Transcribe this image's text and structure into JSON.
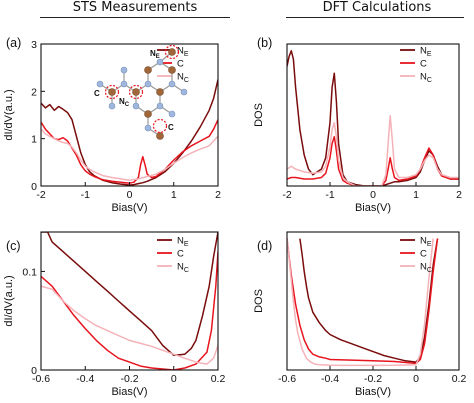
{
  "headers": {
    "left": "STS Measurements",
    "right": "DFT Calculations"
  },
  "colors": {
    "dark": "#7a0c0c",
    "red": "#e8141e",
    "pink": "#f4b3b8",
    "atom_brown": "#a0663a",
    "atom_blue": "#9fb6df",
    "highlight": "#e8141e"
  },
  "inset": {
    "labels": [
      "N",
      "N",
      "C",
      "C"
    ],
    "subscripts": [
      "E",
      "C",
      "",
      ""
    ]
  },
  "chart_data": [
    {
      "id": "a",
      "type": "line",
      "panel_label": "(a)",
      "xlabel": "Bias(V)",
      "ylabel": "dI/dV(a.u.)",
      "xlim": [
        -2,
        2
      ],
      "ylim": [
        0,
        3
      ],
      "xticks": [
        -2,
        -1,
        0,
        1,
        2
      ],
      "yticks": [
        0,
        1,
        2,
        3
      ],
      "legend": {
        "placement": "top-right",
        "entries": [
          {
            "label": "N",
            "sub": "E"
          },
          {
            "label": "C",
            "sub": ""
          },
          {
            "label": "N",
            "sub": "C"
          }
        ]
      },
      "series": [
        {
          "name": "NE",
          "color": "dark",
          "x": [
            -2.0,
            -1.9,
            -1.8,
            -1.7,
            -1.6,
            -1.5,
            -1.4,
            -1.3,
            -1.2,
            -1.1,
            -1.0,
            -0.9,
            -0.8,
            -0.6,
            -0.4,
            -0.2,
            0.0,
            0.1,
            0.2,
            0.3,
            0.4,
            0.6,
            0.8,
            1.0,
            1.2,
            1.4,
            1.6,
            1.8,
            1.9,
            2.0
          ],
          "y": [
            1.75,
            1.65,
            1.72,
            1.6,
            1.68,
            1.62,
            1.55,
            1.4,
            1.05,
            0.7,
            0.45,
            0.3,
            0.22,
            0.12,
            0.07,
            0.04,
            0.02,
            0.03,
            0.05,
            0.07,
            0.1,
            0.18,
            0.3,
            0.48,
            0.7,
            0.95,
            1.25,
            1.6,
            1.85,
            2.25
          ]
        },
        {
          "name": "C",
          "color": "red",
          "x": [
            -2.0,
            -1.9,
            -1.8,
            -1.7,
            -1.6,
            -1.5,
            -1.4,
            -1.3,
            -1.2,
            -1.1,
            -1.0,
            -0.9,
            -0.8,
            -0.6,
            -0.4,
            -0.2,
            0.0,
            0.1,
            0.2,
            0.25,
            0.3,
            0.35,
            0.4,
            0.5,
            0.6,
            0.8,
            1.0,
            1.2,
            1.4,
            1.6,
            1.8,
            1.9,
            2.0
          ],
          "y": [
            1.35,
            1.2,
            1.1,
            1.0,
            0.98,
            1.02,
            0.95,
            0.8,
            0.65,
            0.45,
            0.32,
            0.25,
            0.2,
            0.13,
            0.1,
            0.08,
            0.06,
            0.08,
            0.18,
            0.45,
            0.62,
            0.45,
            0.25,
            0.18,
            0.2,
            0.35,
            0.55,
            0.72,
            0.85,
            0.95,
            1.05,
            1.2,
            1.4
          ]
        },
        {
          "name": "NC",
          "color": "pink",
          "x": [
            -2.0,
            -1.9,
            -1.8,
            -1.7,
            -1.6,
            -1.5,
            -1.4,
            -1.3,
            -1.2,
            -1.1,
            -1.0,
            -0.9,
            -0.8,
            -0.6,
            -0.4,
            -0.2,
            0.0,
            0.2,
            0.4,
            0.6,
            0.8,
            1.0,
            1.2,
            1.4,
            1.6,
            1.8,
            1.9,
            2.0
          ],
          "y": [
            1.2,
            1.1,
            1.05,
            1.0,
            0.95,
            0.92,
            0.9,
            0.82,
            0.7,
            0.55,
            0.42,
            0.35,
            0.3,
            0.22,
            0.18,
            0.15,
            0.12,
            0.15,
            0.2,
            0.25,
            0.35,
            0.48,
            0.6,
            0.7,
            0.78,
            0.85,
            0.95,
            1.05
          ]
        }
      ]
    },
    {
      "id": "b",
      "type": "line",
      "panel_label": "(b)",
      "xlabel": "Bias(V)",
      "ylabel": "DOS",
      "xlim": [
        -2,
        2
      ],
      "xticks": [
        -2,
        -1,
        0,
        1,
        2
      ],
      "yticks": [],
      "legend": {
        "placement": "top-right",
        "entries": [
          {
            "label": "N",
            "sub": "E"
          },
          {
            "label": "C",
            "sub": ""
          },
          {
            "label": "N",
            "sub": "C"
          }
        ]
      },
      "series": [
        {
          "name": "NE",
          "color": "dark",
          "x": [
            -2.0,
            -1.95,
            -1.9,
            -1.85,
            -1.8,
            -1.7,
            -1.6,
            -1.5,
            -1.4,
            -1.3,
            -1.2,
            -1.1,
            -1.0,
            -0.95,
            -0.9,
            -0.85,
            -0.8,
            -0.7,
            -0.6,
            -0.4,
            -0.2,
            0.0,
            0.2,
            0.3,
            0.4,
            0.5,
            0.6,
            0.8,
            1.0,
            1.1,
            1.2,
            1.3,
            1.4,
            1.5,
            1.6,
            1.8,
            2.0
          ],
          "y": [
            0.85,
            0.92,
            0.96,
            0.9,
            0.7,
            0.4,
            0.22,
            0.12,
            0.08,
            0.1,
            0.12,
            0.2,
            0.45,
            0.7,
            0.8,
            0.6,
            0.3,
            0.08,
            0.03,
            0.01,
            0.0,
            0.0,
            0.0,
            0.01,
            0.02,
            0.03,
            0.03,
            0.04,
            0.06,
            0.1,
            0.18,
            0.25,
            0.22,
            0.14,
            0.08,
            0.05,
            0.05
          ]
        },
        {
          "name": "C",
          "color": "red",
          "x": [
            -2.0,
            -1.9,
            -1.8,
            -1.6,
            -1.4,
            -1.2,
            -1.1,
            -1.0,
            -0.95,
            -0.9,
            -0.85,
            -0.8,
            -0.7,
            -0.6,
            -0.4,
            -0.2,
            0.0,
            0.2,
            0.3,
            0.35,
            0.4,
            0.45,
            0.5,
            0.6,
            0.8,
            1.0,
            1.1,
            1.2,
            1.3,
            1.4,
            1.5,
            1.6,
            1.8,
            2.0
          ],
          "y": [
            0.05,
            0.06,
            0.06,
            0.05,
            0.05,
            0.06,
            0.09,
            0.2,
            0.3,
            0.35,
            0.25,
            0.12,
            0.04,
            0.02,
            0.0,
            0.0,
            0.0,
            0.0,
            0.04,
            0.12,
            0.2,
            0.12,
            0.06,
            0.04,
            0.05,
            0.07,
            0.12,
            0.2,
            0.27,
            0.22,
            0.12,
            0.07,
            0.05,
            0.05
          ]
        },
        {
          "name": "NC",
          "color": "pink",
          "x": [
            -2.0,
            -1.9,
            -1.8,
            -1.6,
            -1.4,
            -1.2,
            -1.1,
            -1.0,
            -0.95,
            -0.9,
            -0.85,
            -0.8,
            -0.7,
            -0.6,
            -0.4,
            -0.2,
            0.0,
            0.2,
            0.3,
            0.35,
            0.4,
            0.45,
            0.5,
            0.6,
            0.8,
            1.0,
            1.1,
            1.2,
            1.3,
            1.4,
            1.5,
            1.6,
            1.8,
            2.0
          ],
          "y": [
            0.12,
            0.14,
            0.12,
            0.1,
            0.09,
            0.1,
            0.14,
            0.28,
            0.4,
            0.45,
            0.35,
            0.18,
            0.06,
            0.03,
            0.0,
            0.0,
            0.0,
            0.0,
            0.08,
            0.3,
            0.5,
            0.32,
            0.12,
            0.06,
            0.06,
            0.08,
            0.12,
            0.18,
            0.22,
            0.2,
            0.12,
            0.08,
            0.06,
            0.06
          ]
        }
      ]
    },
    {
      "id": "c",
      "type": "line",
      "panel_label": "(c)",
      "xlabel": "Bias(V)",
      "ylabel": "dI/dV(a.u.)",
      "xlim": [
        -0.6,
        0.2
      ],
      "ylim": [
        0,
        0.14
      ],
      "xticks": [
        -0.6,
        -0.4,
        -0.2,
        0.0,
        0.2
      ],
      "yticks": [
        0.0,
        0.1
      ],
      "legend": {
        "placement": "top-right",
        "entries": [
          {
            "label": "N",
            "sub": "E"
          },
          {
            "label": "C",
            "sub": ""
          },
          {
            "label": "N",
            "sub": "C"
          }
        ]
      },
      "series": [
        {
          "name": "NE",
          "color": "dark",
          "x": [
            -0.6,
            -0.57,
            -0.55,
            -0.5,
            -0.45,
            -0.4,
            -0.35,
            -0.3,
            -0.25,
            -0.2,
            -0.15,
            -0.1,
            -0.05,
            0.0,
            0.05,
            0.08,
            0.1,
            0.13,
            0.16,
            0.18,
            0.2
          ],
          "y": [
            0.14,
            0.14,
            0.13,
            0.12,
            0.11,
            0.1,
            0.09,
            0.08,
            0.07,
            0.06,
            0.05,
            0.04,
            0.025,
            0.015,
            0.016,
            0.022,
            0.03,
            0.055,
            0.085,
            0.115,
            0.14
          ]
        },
        {
          "name": "C",
          "color": "red",
          "x": [
            -0.6,
            -0.55,
            -0.5,
            -0.45,
            -0.4,
            -0.35,
            -0.3,
            -0.25,
            -0.2,
            -0.15,
            -0.1,
            -0.05,
            0.0,
            0.05,
            0.1,
            0.15,
            0.17,
            0.19,
            0.2
          ],
          "y": [
            0.095,
            0.085,
            0.07,
            0.055,
            0.042,
            0.03,
            0.02,
            0.012,
            0.008,
            0.004,
            0.002,
            0.001,
            0.0,
            0.002,
            0.006,
            0.018,
            0.04,
            0.085,
            0.12
          ]
        },
        {
          "name": "NC",
          "color": "pink",
          "x": [
            -0.6,
            -0.55,
            -0.5,
            -0.45,
            -0.4,
            -0.35,
            -0.3,
            -0.25,
            -0.2,
            -0.15,
            -0.1,
            -0.05,
            0.0,
            0.05,
            0.1,
            0.15,
            0.18,
            0.2
          ],
          "y": [
            0.085,
            0.082,
            0.07,
            0.06,
            0.052,
            0.045,
            0.04,
            0.035,
            0.03,
            0.027,
            0.024,
            0.02,
            0.016,
            0.012,
            0.008,
            0.006,
            0.012,
            0.025
          ]
        }
      ]
    },
    {
      "id": "d",
      "type": "line",
      "panel_label": "(d)",
      "xlabel": "Bias(V)",
      "ylabel": "DOS",
      "xlim": [
        -0.6,
        0.2
      ],
      "xticks": [
        -0.6,
        -0.4,
        -0.2,
        0.0,
        0.2
      ],
      "yticks": [],
      "legend": {
        "placement": "top-right",
        "entries": [
          {
            "label": "N",
            "sub": "E"
          },
          {
            "label": "C",
            "sub": ""
          },
          {
            "label": "N",
            "sub": "C"
          }
        ]
      },
      "series": [
        {
          "name": "NE",
          "color": "dark",
          "x": [
            -0.54,
            -0.53,
            -0.52,
            -0.51,
            -0.5,
            -0.48,
            -0.45,
            -0.42,
            -0.4,
            -0.35,
            -0.3,
            -0.25,
            -0.2,
            -0.15,
            -0.1,
            -0.05,
            0.0,
            0.02,
            0.04,
            0.06,
            0.08,
            0.1
          ],
          "y": [
            1.0,
            0.88,
            0.75,
            0.64,
            0.55,
            0.44,
            0.36,
            0.3,
            0.27,
            0.23,
            0.2,
            0.17,
            0.14,
            0.11,
            0.09,
            0.07,
            0.06,
            0.1,
            0.25,
            0.5,
            0.8,
            1.0
          ]
        },
        {
          "name": "C",
          "color": "red",
          "x": [
            -0.6,
            -0.58,
            -0.56,
            -0.54,
            -0.52,
            -0.5,
            -0.48,
            -0.45,
            -0.42,
            -0.4,
            -0.3,
            -0.2,
            -0.1,
            0.0,
            0.02,
            0.04,
            0.06,
            0.08,
            0.1
          ],
          "y": [
            1.0,
            0.72,
            0.5,
            0.34,
            0.23,
            0.16,
            0.12,
            0.1,
            0.09,
            0.08,
            0.075,
            0.07,
            0.065,
            0.05,
            0.08,
            0.2,
            0.45,
            0.75,
            1.0
          ]
        },
        {
          "name": "NC",
          "color": "pink",
          "x": [
            -0.6,
            -0.59,
            -0.58,
            -0.57,
            -0.56,
            -0.55,
            -0.53,
            -0.51,
            -0.49,
            -0.47,
            -0.45,
            -0.42,
            -0.4,
            -0.3,
            -0.2,
            -0.1,
            0.0,
            0.02,
            0.04,
            0.06,
            0.08
          ],
          "y": [
            1.0,
            0.85,
            0.68,
            0.52,
            0.38,
            0.28,
            0.16,
            0.09,
            0.06,
            0.045,
            0.04,
            0.038,
            0.036,
            0.035,
            0.035,
            0.036,
            0.04,
            0.12,
            0.35,
            0.7,
            1.0
          ]
        }
      ]
    }
  ]
}
